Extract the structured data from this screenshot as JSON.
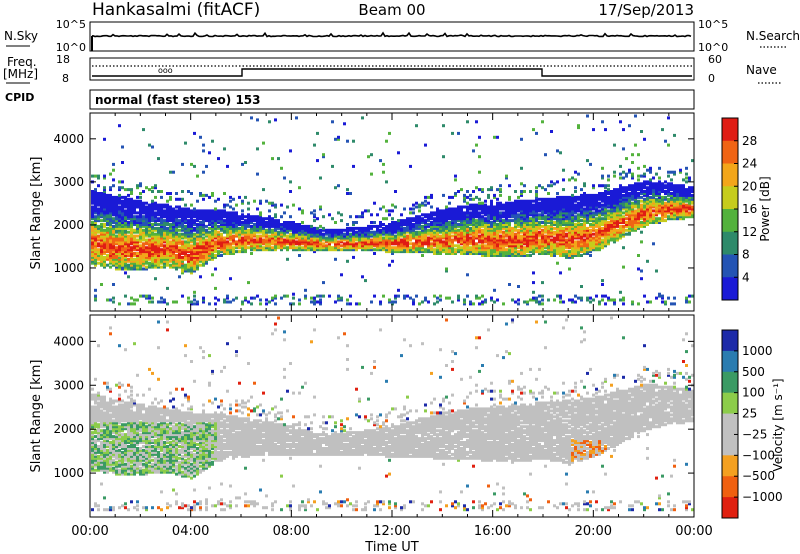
{
  "header": {
    "station": "Hankasalmi (fitACF)",
    "beam": "Beam 00",
    "date": "17/Sep/2013"
  },
  "summary_panel": {
    "nsky_label": "N.Sky",
    "nsky_ticks": [
      "10^5",
      "10^0"
    ],
    "nsearch_label": "N.Search",
    "nsearch_ticks": [
      "10^5",
      "10^0"
    ],
    "freq_label": "Freq.",
    "freq_unit": "[MHz]",
    "freq_ticks": [
      "18",
      "8"
    ],
    "nave_label": "Nave",
    "nave_ticks": [
      "60",
      "0"
    ],
    "cpid_label": "CPID",
    "cpid_text": "normal (fast stereo) 153"
  },
  "chart_data": [
    {
      "type": "heatmap",
      "name": "power-panel",
      "xlabel": "",
      "ylabel": "Slant Range [km]",
      "yticks": [
        "1000",
        "2000",
        "3000",
        "4000"
      ],
      "ylim": [
        0,
        4600
      ],
      "xlim_hours": [
        0,
        24
      ],
      "colorbar_label": "Power [dB]",
      "colorbar_ticks": [
        "4",
        "8",
        "12",
        "16",
        "20",
        "24",
        "28"
      ],
      "colorbar_colors": [
        "#1a1ad6",
        "#2454b4",
        "#2e8a6a",
        "#53b23c",
        "#c6cc1c",
        "#f3a61a",
        "#f06414",
        "#e01c14"
      ],
      "bands": [
        {
          "hour": 0,
          "top": 2850,
          "bottom": 1100
        },
        {
          "hour": 1,
          "top": 2700,
          "bottom": 1000
        },
        {
          "hour": 2,
          "top": 2600,
          "bottom": 1000
        },
        {
          "hour": 3,
          "top": 2500,
          "bottom": 1050
        },
        {
          "hour": 4,
          "top": 2400,
          "bottom": 900
        },
        {
          "hour": 5,
          "top": 2400,
          "bottom": 1300
        },
        {
          "hour": 6,
          "top": 2300,
          "bottom": 1400
        },
        {
          "hour": 7,
          "top": 2200,
          "bottom": 1450
        },
        {
          "hour": 8,
          "top": 2100,
          "bottom": 1450
        },
        {
          "hour": 9,
          "top": 1950,
          "bottom": 1450
        },
        {
          "hour": 10,
          "top": 1950,
          "bottom": 1450
        },
        {
          "hour": 11,
          "top": 2000,
          "bottom": 1450
        },
        {
          "hour": 12,
          "top": 2100,
          "bottom": 1400
        },
        {
          "hour": 13,
          "top": 2250,
          "bottom": 1400
        },
        {
          "hour": 14,
          "top": 2400,
          "bottom": 1350
        },
        {
          "hour": 15,
          "top": 2500,
          "bottom": 1350
        },
        {
          "hour": 16,
          "top": 2550,
          "bottom": 1300
        },
        {
          "hour": 17,
          "top": 2600,
          "bottom": 1300
        },
        {
          "hour": 18,
          "top": 2650,
          "bottom": 1350
        },
        {
          "hour": 19,
          "top": 2700,
          "bottom": 1250
        },
        {
          "hour": 20,
          "top": 2750,
          "bottom": 1400
        },
        {
          "hour": 21,
          "top": 2900,
          "bottom": 1700
        },
        {
          "hour": 22,
          "top": 3050,
          "bottom": 2000
        },
        {
          "hour": 23,
          "top": 3000,
          "bottom": 2150
        },
        {
          "hour": 24,
          "top": 2900,
          "bottom": 2200
        }
      ]
    },
    {
      "type": "heatmap",
      "name": "velocity-panel",
      "xlabel": "Time UT",
      "ylabel": "Slant Range [km]",
      "xticks": [
        "00:00",
        "04:00",
        "08:00",
        "12:00",
        "16:00",
        "20:00",
        "00:00"
      ],
      "yticks": [
        "1000",
        "2000",
        "3000",
        "4000"
      ],
      "ylim": [
        0,
        4600
      ],
      "xlim_hours": [
        0,
        24
      ],
      "colorbar_label": "Velocity [m s⁻¹]",
      "colorbar_ticks": [
        "1000",
        "500",
        "100",
        "25",
        "−25",
        "−100",
        "−500",
        "−1000"
      ],
      "colorbar_colors": [
        "#1c2aa8",
        "#2a7cb0",
        "#3a9a64",
        "#8ccc4a",
        "#c0c0c0",
        "#c0c0c0",
        "#f4a020",
        "#f06010",
        "#e02010"
      ],
      "ground_color": "#c0c0c0"
    }
  ]
}
